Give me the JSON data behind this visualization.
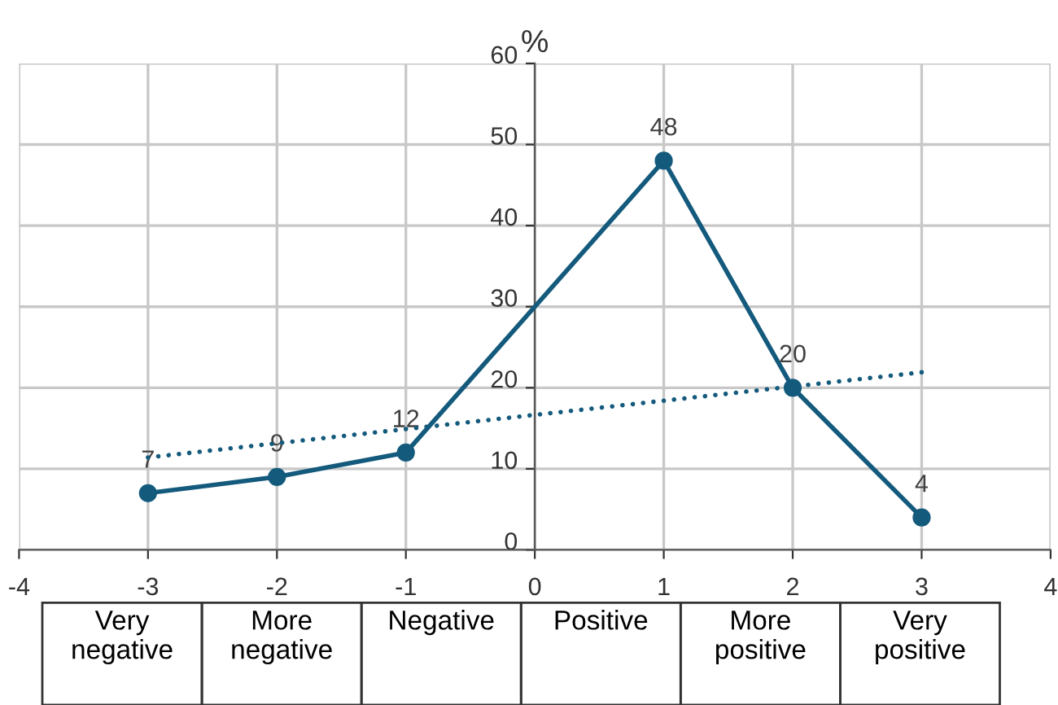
{
  "chart_data": {
    "type": "line",
    "ylabel": "%",
    "x": [
      -3,
      -2,
      -1,
      1,
      2,
      3
    ],
    "series": [
      {
        "color": "#145a7c",
        "values": [
          7,
          9,
          12,
          48,
          20,
          4
        ],
        "marker": "circle",
        "line_style": "solid",
        "data_labels": true
      },
      {
        "type": "line",
        "x": [
          -3,
          3
        ],
        "color": "#145a7c",
        "values": [
          11.4,
          21.9
        ],
        "marker": "none",
        "line_style": "dotted"
      }
    ],
    "xlim": [
      -4,
      4
    ],
    "xticks": [
      -4,
      -3,
      -2,
      -1,
      0,
      1,
      2,
      3,
      4
    ],
    "ylim": [
      0,
      60
    ],
    "yticks": [
      0,
      10,
      20,
      30,
      40,
      50,
      60
    ],
    "grid": true,
    "legend": false,
    "annotations": [
      "Very\nnegative",
      "More\nnegative",
      "Negative",
      "Positive",
      "More\npositive",
      "Very\npositive"
    ]
  }
}
